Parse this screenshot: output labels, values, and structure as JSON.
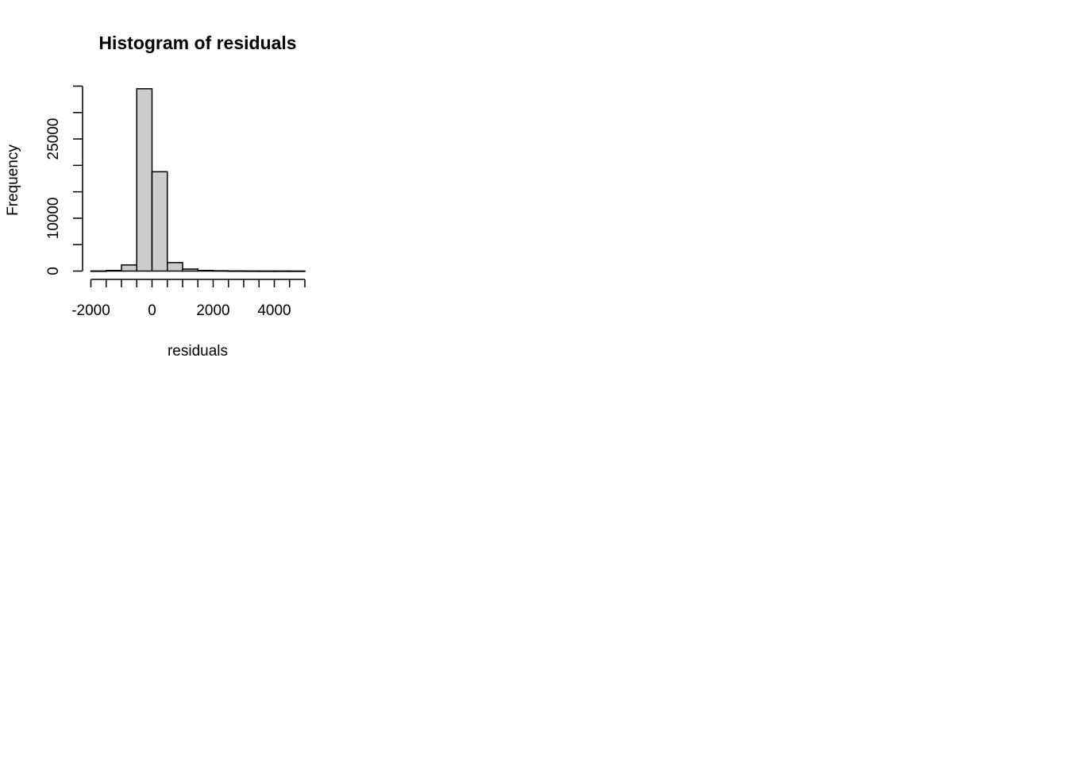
{
  "chart_data": {
    "type": "bar",
    "title": "Histogram of residuals",
    "xlabel": "residuals",
    "ylabel": "Frequency",
    "bin_width": 500,
    "bins": [
      {
        "start": -2000,
        "end": -1500,
        "count": 20
      },
      {
        "start": -1500,
        "end": -1000,
        "count": 120
      },
      {
        "start": -1000,
        "end": -500,
        "count": 1150
      },
      {
        "start": -500,
        "end": 0,
        "count": 34500
      },
      {
        "start": 0,
        "end": 500,
        "count": 18800
      },
      {
        "start": 500,
        "end": 1000,
        "count": 1600
      },
      {
        "start": 1000,
        "end": 1500,
        "count": 380
      },
      {
        "start": 1500,
        "end": 2000,
        "count": 120
      },
      {
        "start": 2000,
        "end": 2500,
        "count": 60
      },
      {
        "start": 2500,
        "end": 3000,
        "count": 30
      },
      {
        "start": 3000,
        "end": 3500,
        "count": 20
      },
      {
        "start": 3500,
        "end": 4000,
        "count": 10
      },
      {
        "start": 4000,
        "end": 4500,
        "count": 10
      },
      {
        "start": 4500,
        "end": 5000,
        "count": 5
      }
    ],
    "xlim": [
      -2000,
      5000
    ],
    "ylim": [
      0,
      35000
    ],
    "x_ticks": [
      -2000,
      -1500,
      -1000,
      -500,
      0,
      500,
      1000,
      1500,
      2000,
      2500,
      3000,
      3500,
      4000,
      4500,
      5000
    ],
    "x_tick_labels": [
      {
        "value": -2000,
        "label": "-2000"
      },
      {
        "value": 0,
        "label": "0"
      },
      {
        "value": 2000,
        "label": "2000"
      },
      {
        "value": 4000,
        "label": "4000"
      }
    ],
    "y_ticks": [
      0,
      5000,
      10000,
      15000,
      20000,
      25000,
      30000,
      35000
    ],
    "y_tick_labels": [
      {
        "value": 0,
        "label": "0"
      },
      {
        "value": 10000,
        "label": "10000"
      },
      {
        "value": 25000,
        "label": "25000"
      }
    ],
    "bar_fill": "#cccccc",
    "bar_stroke": "#000000",
    "grid": false
  }
}
